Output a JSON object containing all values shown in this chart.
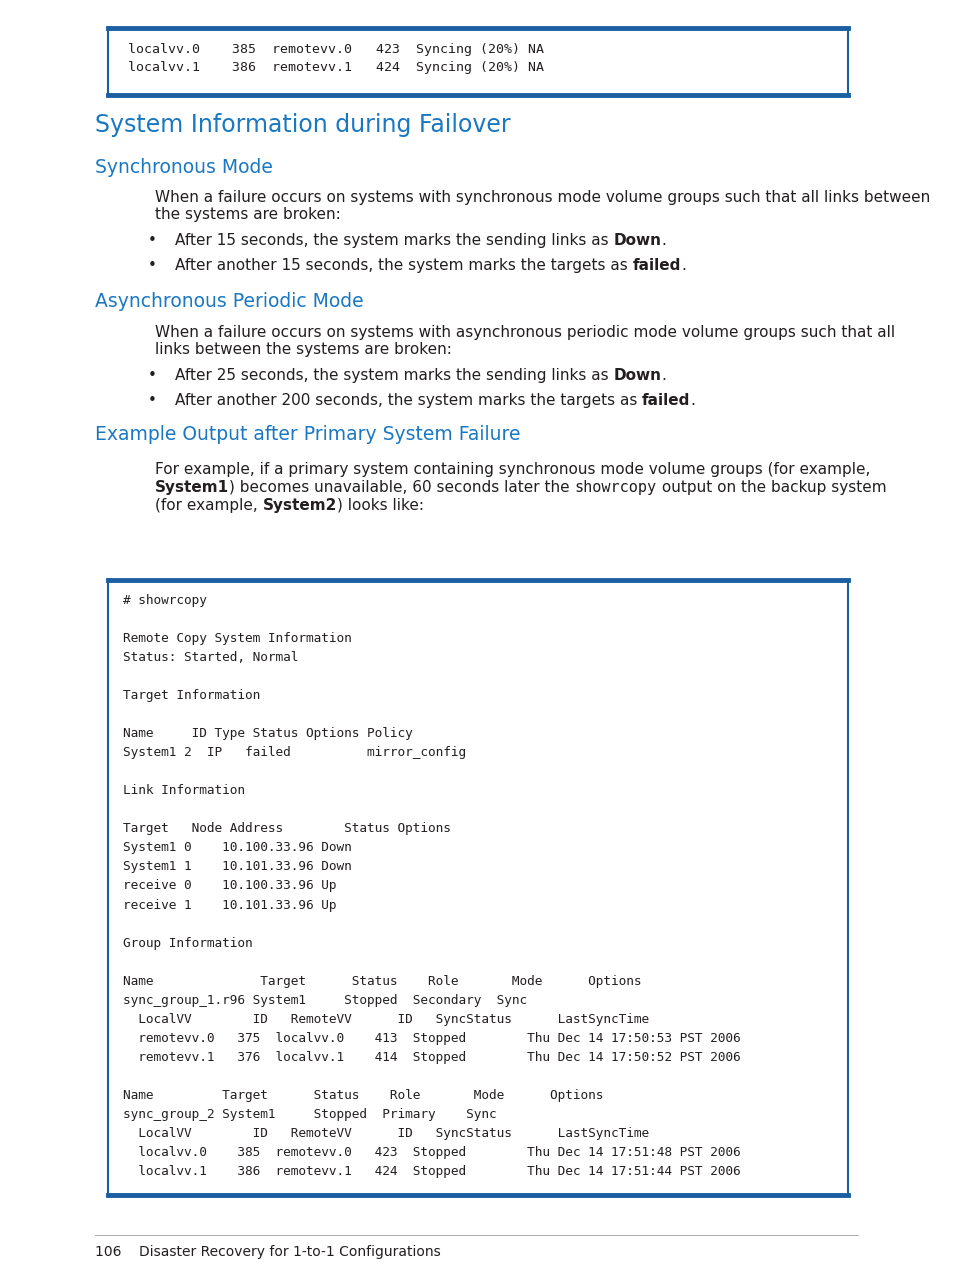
{
  "page_bg": "#ffffff",
  "blue_heading": "#1a78c2",
  "text_color": "#231f20",
  "code_border": "#1a5fa0",
  "top_code_lines": [
    "localvv.0    385  remotevv.0   423  Syncing (20%) NA",
    "localvv.1    386  remotevv.1   424  Syncing (20%) NA"
  ],
  "h1": "System Information during Failover",
  "h2_sync": "Synchronous Mode",
  "h2_async": "Asynchronous Periodic Mode",
  "h2_example": "Example Output after Primary System Failure",
  "code_block": [
    "# showrcopy",
    "",
    "Remote Copy System Information",
    "Status: Started, Normal",
    "",
    "Target Information",
    "",
    "Name     ID Type Status Options Policy",
    "System1 2  IP   failed          mirror_config",
    "",
    "Link Information",
    "",
    "Target   Node Address        Status Options",
    "System1 0    10.100.33.96 Down",
    "System1 1    10.101.33.96 Down",
    "receive 0    10.100.33.96 Up",
    "receive 1    10.101.33.96 Up",
    "",
    "Group Information",
    "",
    "Name              Target      Status    Role       Mode      Options",
    "sync_group_1.r96 System1     Stopped  Secondary  Sync",
    "  LocalVV        ID   RemoteVV      ID   SyncStatus      LastSyncTime",
    "  remotevv.0   375  localvv.0    413  Stopped        Thu Dec 14 17:50:53 PST 2006",
    "  remotevv.1   376  localvv.1    414  Stopped        Thu Dec 14 17:50:52 PST 2006",
    "",
    "Name         Target      Status    Role       Mode      Options",
    "sync_group_2 System1     Stopped  Primary    Sync",
    "  LocalVV        ID   RemoteVV      ID   SyncStatus      LastSyncTime",
    "  localvv.0    385  remotevv.0   423  Stopped        Thu Dec 14 17:51:48 PST 2006",
    "  localvv.1    386  remotevv.1   424  Stopped        Thu Dec 14 17:51:44 PST 2006"
  ],
  "footer": "106    Disaster Recovery for 1-to-1 Configurations"
}
